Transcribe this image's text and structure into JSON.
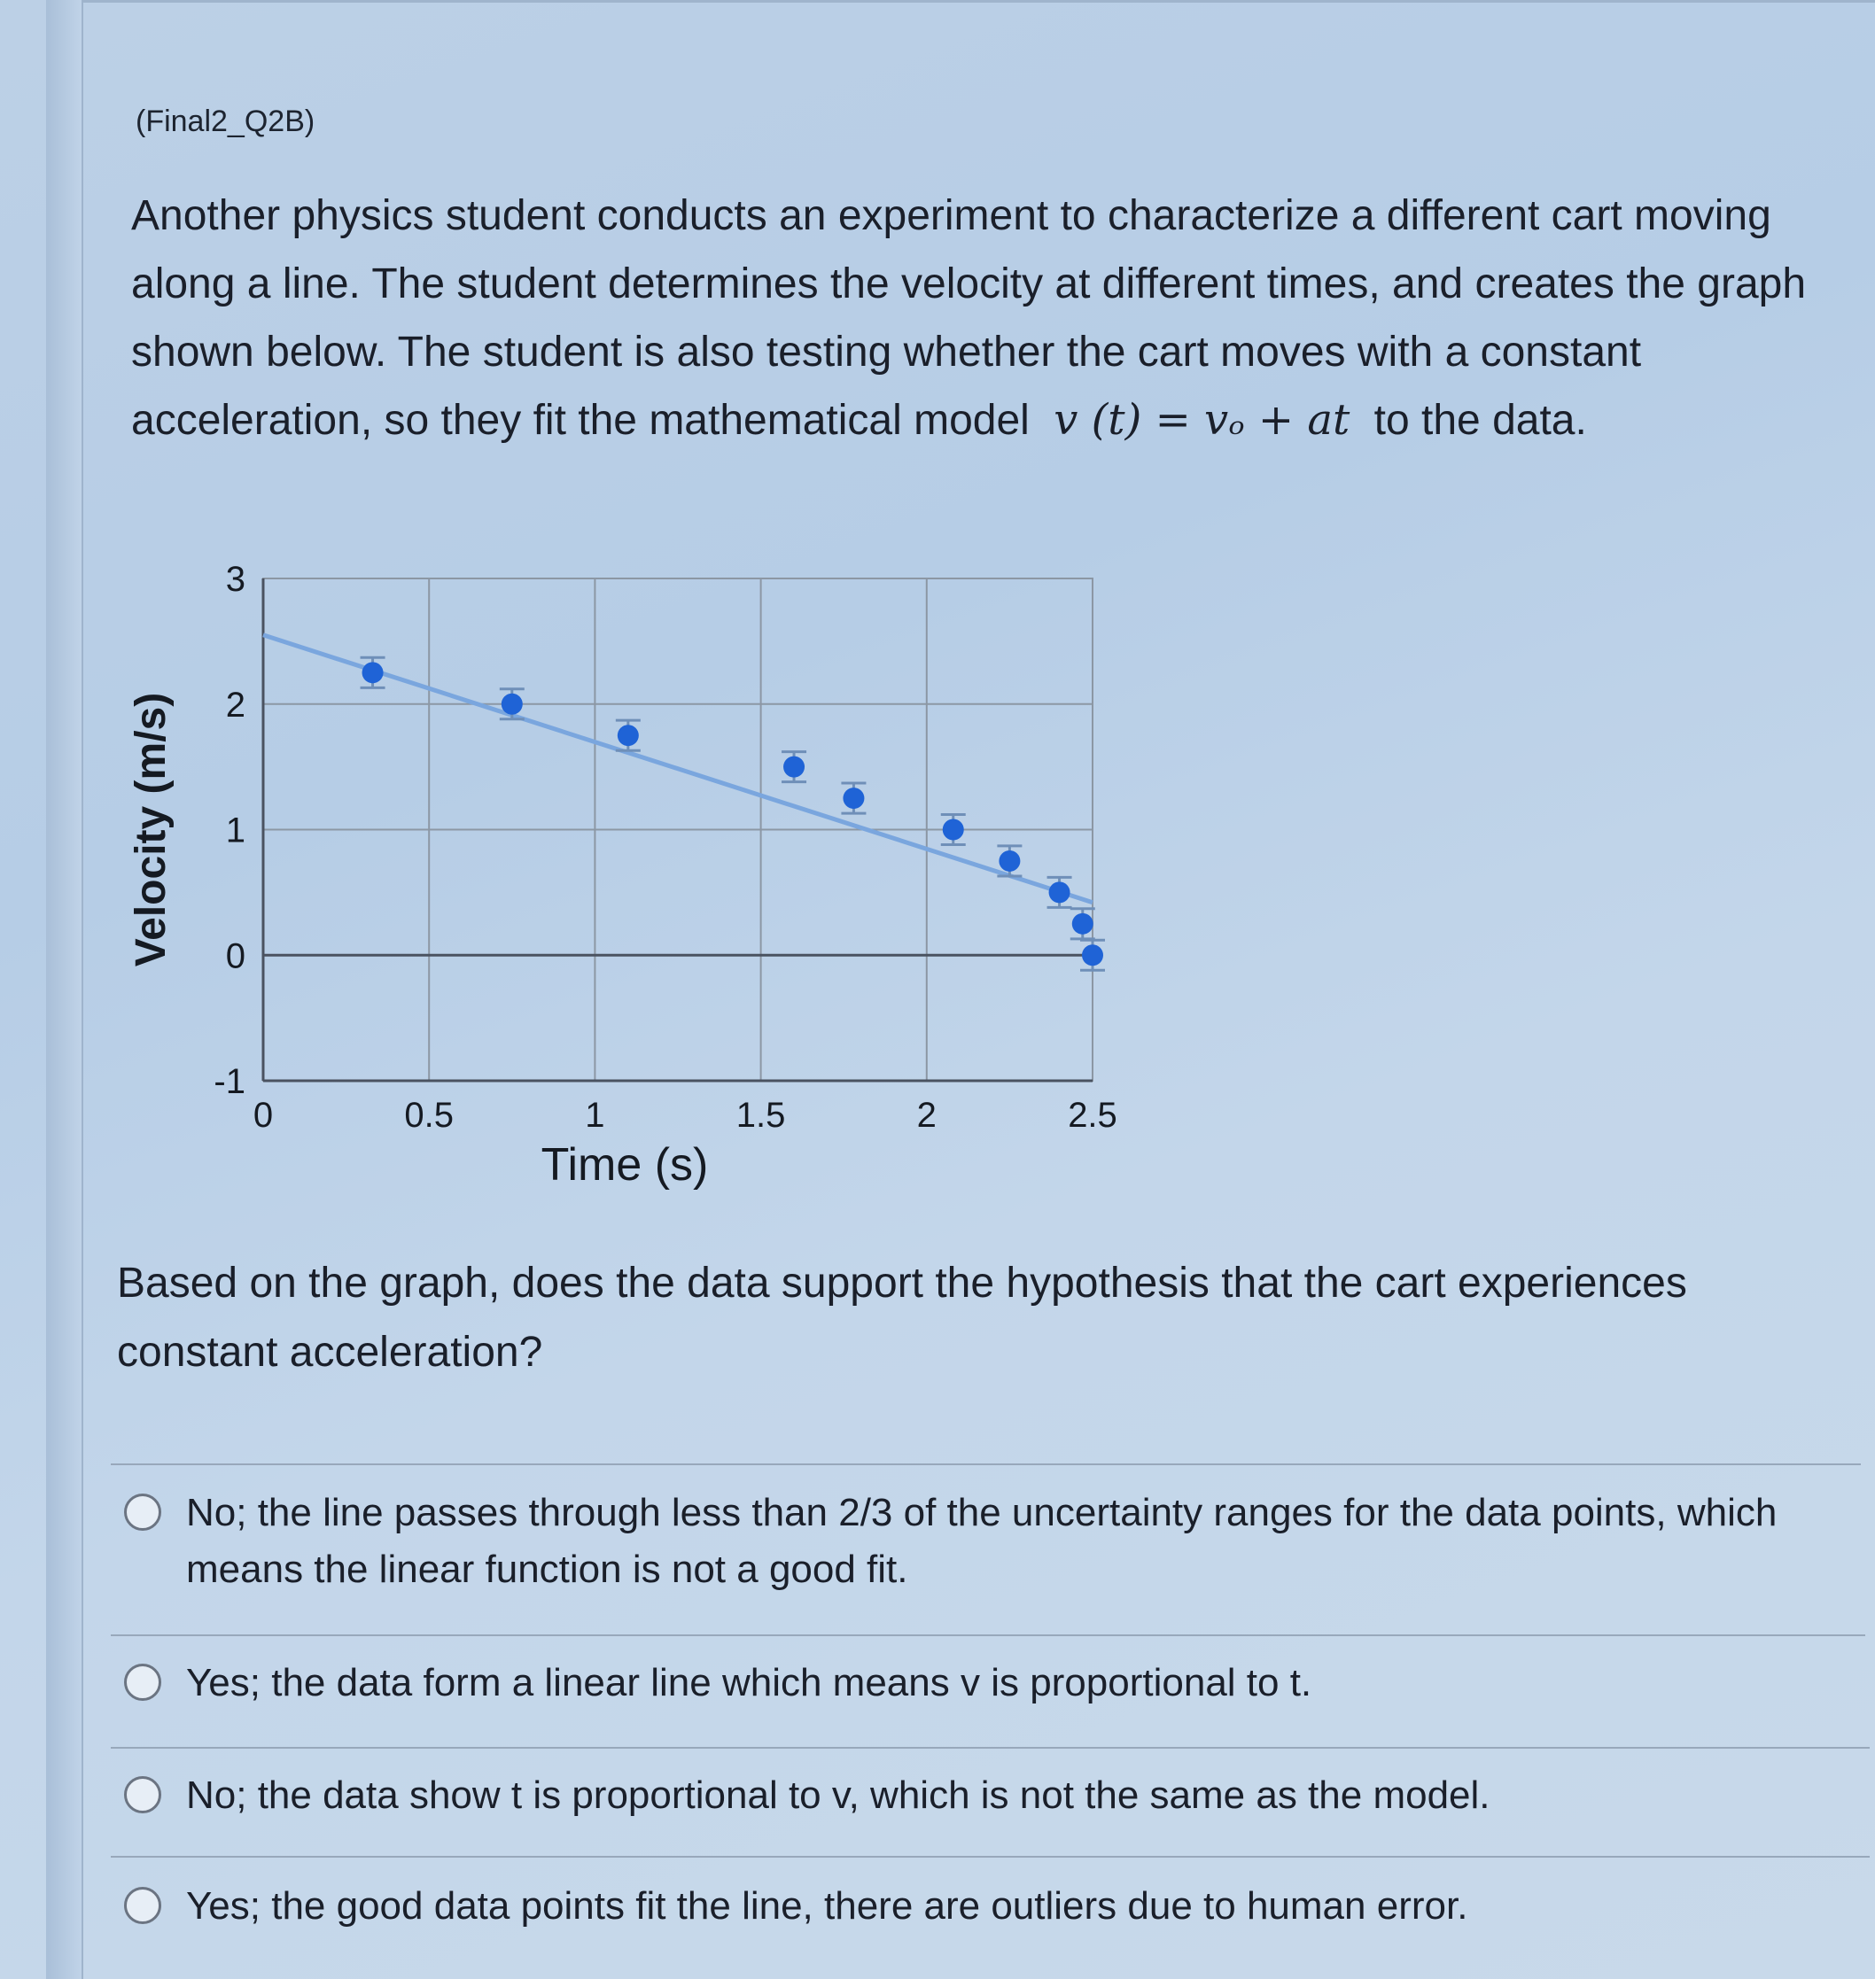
{
  "question": {
    "id": "(Final2_Q2B)",
    "stem_text": "Another physics student conducts an experiment to characterize a different cart moving along a line.  The student determines the velocity at different times, and creates the graph shown below. The student is also testing whether the cart moves with a constant acceleration, so they fit the mathematical model",
    "formula": "v (t) = vₒ + at",
    "stem_after": "to the data.",
    "prompt": "Based on the graph, does the data support the hypothesis that the cart experiences constant acceleration?"
  },
  "options": [
    {
      "label": "No; the line passes through less than 2/3 of the uncertainty ranges for the data points, which means the linear function is not a good fit."
    },
    {
      "label": "Yes; the data form a linear line which means v is proportional to t."
    },
    {
      "label": "No; the data show t is proportional to v, which is not the same as the model."
    },
    {
      "label": "Yes; the good data points fit the line, there are outliers due to human error."
    }
  ],
  "chart_data": {
    "type": "scatter",
    "xlabel": "Time (s)",
    "ylabel": "Velocity (m/s)",
    "xlim": [
      0,
      2.5
    ],
    "ylim": [
      -1,
      3
    ],
    "xticks": [
      0,
      0.5,
      1,
      1.5,
      2,
      2.5
    ],
    "xtick_labels": [
      "0",
      "0.5",
      "1",
      "1.5",
      "2",
      "2.5"
    ],
    "yticks": [
      -1,
      0,
      1,
      2,
      3
    ],
    "ytick_labels": [
      "-1",
      "0",
      "1",
      "2",
      "3"
    ],
    "grid": true,
    "points": [
      {
        "x": 0.33,
        "y": 2.25,
        "err": 0.12
      },
      {
        "x": 0.75,
        "y": 2.0,
        "err": 0.12
      },
      {
        "x": 1.1,
        "y": 1.75,
        "err": 0.12
      },
      {
        "x": 1.6,
        "y": 1.5,
        "err": 0.12
      },
      {
        "x": 1.78,
        "y": 1.25,
        "err": 0.12
      },
      {
        "x": 2.08,
        "y": 1.0,
        "err": 0.12
      },
      {
        "x": 2.25,
        "y": 0.75,
        "err": 0.12
      },
      {
        "x": 2.4,
        "y": 0.5,
        "err": 0.12
      },
      {
        "x": 2.47,
        "y": 0.25,
        "err": 0.12
      },
      {
        "x": 2.5,
        "y": 0.0,
        "err": 0.12
      }
    ],
    "fit_line": {
      "x": [
        0,
        2.5
      ],
      "y": [
        2.55,
        0.42
      ]
    },
    "colors": {
      "point": "#1f63d6",
      "fit": "#7aa6de",
      "grid": "#8c97a4",
      "axis": "#4a5260"
    }
  }
}
